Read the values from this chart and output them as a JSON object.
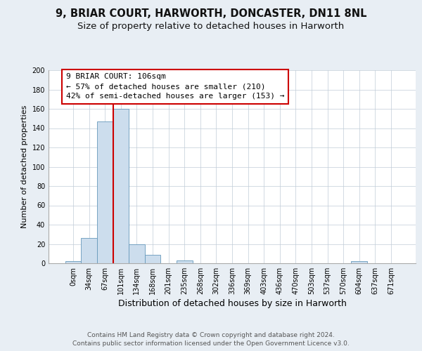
{
  "title_line1": "9, BRIAR COURT, HARWORTH, DONCASTER, DN11 8NL",
  "title_line2": "Size of property relative to detached houses in Harworth",
  "xlabel": "Distribution of detached houses by size in Harworth",
  "ylabel": "Number of detached properties",
  "bar_labels": [
    "0sqm",
    "34sqm",
    "67sqm",
    "101sqm",
    "134sqm",
    "168sqm",
    "201sqm",
    "235sqm",
    "268sqm",
    "302sqm",
    "336sqm",
    "369sqm",
    "403sqm",
    "436sqm",
    "470sqm",
    "503sqm",
    "537sqm",
    "570sqm",
    "604sqm",
    "637sqm",
    "671sqm"
  ],
  "bar_values": [
    2,
    26,
    147,
    160,
    20,
    9,
    0,
    3,
    0,
    0,
    0,
    0,
    0,
    0,
    0,
    0,
    0,
    0,
    2,
    0,
    0
  ],
  "bar_color": "#ccdded",
  "bar_edgecolor": "#6699bb",
  "vline_index": 2.5,
  "vline_color": "#cc0000",
  "annotation_line1": "9 BRIAR COURT: 106sqm",
  "annotation_line2": "← 57% of detached houses are smaller (210)",
  "annotation_line3": "42% of semi-detached houses are larger (153) →",
  "annotation_box_facecolor": "#ffffff",
  "annotation_box_edgecolor": "#cc0000",
  "ylim": [
    0,
    200
  ],
  "yticks": [
    0,
    20,
    40,
    60,
    80,
    100,
    120,
    140,
    160,
    180,
    200
  ],
  "bg_color": "#e8eef4",
  "plot_bg_color": "#ffffff",
  "grid_color": "#c0ccd8",
  "title_fontsize": 10.5,
  "subtitle_fontsize": 9.5,
  "xlabel_fontsize": 9,
  "ylabel_fontsize": 8,
  "tick_fontsize": 7,
  "annotation_fontsize": 8,
  "footnote_fontsize": 6.5,
  "footnote1": "Contains HM Land Registry data © Crown copyright and database right 2024.",
  "footnote2": "Contains public sector information licensed under the Open Government Licence v3.0."
}
